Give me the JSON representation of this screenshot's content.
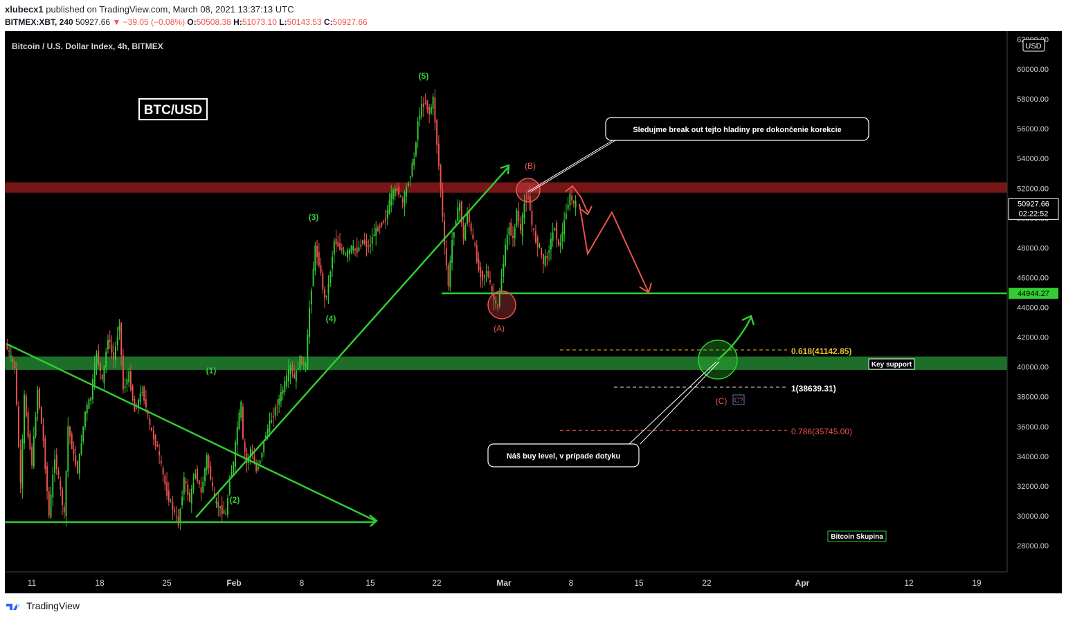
{
  "header": {
    "publisher": "xlubecx1",
    "published_text": "published on TradingView.com, March 08, 2021 13:37:13 UTC",
    "symbol": "BITMEX:XBT, 240",
    "last": "50927.66",
    "change": "▼ −39.05 (−0.08%)",
    "o_label": "O:",
    "o": "50508.38",
    "h_label": "H:",
    "h": "51073.10",
    "l_label": "L:",
    "l": "50143.53",
    "c_label": "C:",
    "c": "50927.66"
  },
  "chart_data": {
    "type": "candlestick",
    "title": "Bitcoin / U.S. Dollar Index, 4h, BITMEX",
    "badge": "BTC/USD",
    "currency": "USD",
    "ylim": [
      26000,
      62000
    ],
    "y_ticks": [
      "28000.00",
      "30000.00",
      "32000.00",
      "34000.00",
      "36000.00",
      "38000.00",
      "40000.00",
      "42000.00",
      "44000.00",
      "46000.00",
      "48000.00",
      "50000.00",
      "52000.00",
      "54000.00",
      "56000.00",
      "58000.00",
      "60000.00",
      "62000.00"
    ],
    "x_ticks": [
      "11",
      "18",
      "25",
      "Feb",
      "8",
      "15",
      "22",
      "Mar",
      "8",
      "15",
      "22",
      "Apr",
      "12",
      "19"
    ],
    "price_path": [
      [
        0,
        41500
      ],
      [
        5,
        40000
      ],
      [
        8,
        32000
      ],
      [
        10,
        38000
      ],
      [
        12,
        35500
      ],
      [
        14,
        33500
      ],
      [
        17,
        38500
      ],
      [
        20,
        35000
      ],
      [
        23,
        30000
      ],
      [
        26,
        34000
      ],
      [
        28,
        32500
      ],
      [
        31,
        30000
      ],
      [
        33,
        36000
      ],
      [
        36,
        34000
      ],
      [
        38,
        33000
      ],
      [
        42,
        37000
      ],
      [
        45,
        38000
      ],
      [
        48,
        41000
      ],
      [
        51,
        39000
      ],
      [
        54,
        42000
      ],
      [
        57,
        40500
      ],
      [
        60,
        43000
      ],
      [
        62,
        38500
      ],
      [
        65,
        39500
      ],
      [
        68,
        37000
      ],
      [
        72,
        38500
      ],
      [
        76,
        36000
      ],
      [
        80,
        34500
      ],
      [
        85,
        31500
      ],
      [
        88,
        30500
      ],
      [
        91,
        29500
      ],
      [
        94,
        32500
      ],
      [
        97,
        31000
      ],
      [
        100,
        33000
      ],
      [
        103,
        31500
      ],
      [
        106,
        34000
      ],
      [
        110,
        31000
      ],
      [
        113,
        30500
      ],
      [
        116,
        30000
      ],
      [
        118,
        32500
      ],
      [
        120,
        33500
      ],
      [
        122,
        36000
      ],
      [
        124,
        37500
      ],
      [
        125,
        35000
      ],
      [
        127,
        33500
      ],
      [
        129,
        34500
      ],
      [
        132,
        33000
      ],
      [
        134,
        33800
      ],
      [
        137,
        35500
      ],
      [
        140,
        36500
      ],
      [
        143,
        37500
      ],
      [
        146,
        38500
      ],
      [
        150,
        40000
      ],
      [
        152,
        39200
      ],
      [
        155,
        40500
      ],
      [
        158,
        40000
      ],
      [
        160,
        44000
      ],
      [
        163,
        48000
      ],
      [
        165,
        47000
      ],
      [
        168,
        44500
      ],
      [
        170,
        45500
      ],
      [
        173,
        48500
      ],
      [
        176,
        48000
      ],
      [
        179,
        47500
      ],
      [
        182,
        48000
      ],
      [
        185,
        47800
      ],
      [
        188,
        48500
      ],
      [
        191,
        48000
      ],
      [
        194,
        49000
      ],
      [
        197,
        49500
      ],
      [
        200,
        50000
      ],
      [
        203,
        51500
      ],
      [
        206,
        52000
      ],
      [
        209,
        51000
      ],
      [
        212,
        52500
      ],
      [
        215,
        54000
      ],
      [
        217,
        56500
      ],
      [
        219,
        57500
      ],
      [
        221,
        57800
      ],
      [
        223,
        57000
      ],
      [
        225,
        58000
      ],
      [
        227,
        55000
      ],
      [
        229,
        52000
      ],
      [
        231,
        48000
      ],
      [
        233,
        45500
      ],
      [
        235,
        48500
      ],
      [
        237,
        50000
      ],
      [
        239,
        51000
      ],
      [
        241,
        48500
      ],
      [
        243,
        50500
      ],
      [
        245,
        49000
      ],
      [
        247,
        48000
      ],
      [
        249,
        46500
      ],
      [
        251,
        46000
      ],
      [
        253,
        46500
      ],
      [
        255,
        45500
      ],
      [
        257,
        44500
      ],
      [
        259,
        44000
      ],
      [
        261,
        46000
      ],
      [
        263,
        48000
      ],
      [
        265,
        49500
      ],
      [
        267,
        48500
      ],
      [
        269,
        50500
      ],
      [
        271,
        49000
      ],
      [
        273,
        51000
      ],
      [
        275,
        51500
      ],
      [
        277,
        49500
      ],
      [
        279,
        48500
      ],
      [
        281,
        48000
      ],
      [
        283,
        47000
      ],
      [
        285,
        47500
      ],
      [
        287,
        48500
      ],
      [
        289,
        49500
      ],
      [
        291,
        48000
      ],
      [
        293,
        49000
      ],
      [
        295,
        50500
      ],
      [
        297,
        51500
      ],
      [
        299,
        50927
      ]
    ],
    "zones": [
      {
        "name": "resistance",
        "low": 51700,
        "high": 52400,
        "color": "#8b1a1a"
      },
      {
        "name": "support",
        "low": 39800,
        "high": 40700,
        "color": "#1f7a2c"
      }
    ],
    "levels": [
      {
        "value": 44944.27,
        "label": "44944.27",
        "color": "#32cd32"
      },
      {
        "value": 41142.85,
        "label": "0.618(41142.85)",
        "color": "#e6c229"
      },
      {
        "value": 38639.31,
        "label": "1(38639.31)",
        "color": "#ffffff"
      },
      {
        "value": 35745.0,
        "label": "0.786(35745.00)",
        "color": "#ef5350"
      }
    ],
    "price_label": "50927.66",
    "timer_label": "02:22:52",
    "level_price_label": "44944.27"
  },
  "annotations": {
    "callout_top": "Sledujme break out tejto hladiny pre dokončenie korekcie",
    "callout_bottom": "Náš buy level, v prípade dotyku",
    "key_support": "Key support",
    "bitcoin_skupina": "Bitcoin Skupina",
    "wave_5_top": "(5)",
    "wave_3": "(3)",
    "wave_4": "(4)",
    "wave_1": "(1)",
    "wave_2": "(2)",
    "wave_B": "(B)",
    "wave_A": "(A)",
    "wave_C": "(C)",
    "c_q": "C?"
  },
  "footer": {
    "brand": "TradingView"
  },
  "colors": {
    "green": "#32cd32",
    "red": "#ef5350",
    "bg": "#000000"
  }
}
